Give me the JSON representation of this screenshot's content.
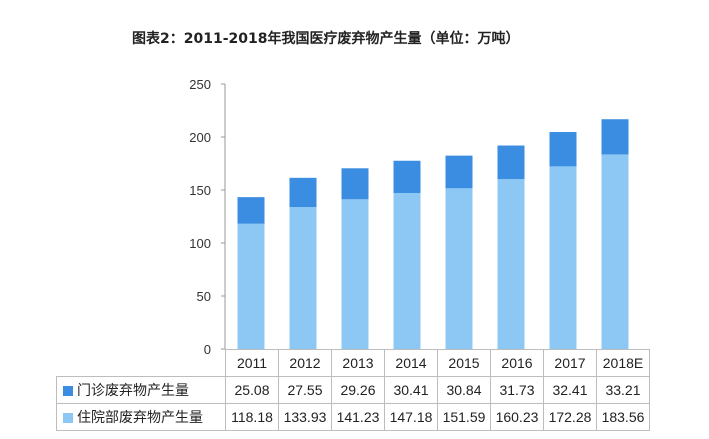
{
  "title": "图表2：2011-2018年我国医疗废弃物产生量（单位：万吨）",
  "colors": {
    "outpatient": "#3a8de0",
    "inpatient": "#8dc8f5",
    "grid": "#d9d9d9",
    "axis": "#999999"
  },
  "chart_data": {
    "type": "bar",
    "stacked": true,
    "categories": [
      "2011",
      "2012",
      "2013",
      "2014",
      "2015",
      "2016",
      "2017",
      "2018E"
    ],
    "series": [
      {
        "name": "住院部废弃物产生量",
        "values": [
          118.18,
          133.93,
          141.23,
          147.18,
          151.59,
          160.23,
          172.28,
          183.56
        ]
      },
      {
        "name": "门诊废弃物产生量",
        "values": [
          25.08,
          27.55,
          29.26,
          30.41,
          30.84,
          31.73,
          32.41,
          33.21
        ]
      }
    ],
    "ylim": [
      0,
      250
    ],
    "yticks": [
      "0",
      "50",
      "100",
      "150",
      "200",
      "250"
    ],
    "grid": false,
    "legend": "data-table"
  },
  "table": {
    "rows": [
      {
        "label": "门诊废弃物产生量",
        "values": [
          "25.08",
          "27.55",
          "29.26",
          "30.41",
          "30.84",
          "31.73",
          "32.41",
          "33.21"
        ]
      },
      {
        "label": "住院部废弃物产生量",
        "values": [
          "118.18",
          "133.93",
          "141.23",
          "147.18",
          "151.59",
          "160.23",
          "172.28",
          "183.56"
        ]
      }
    ]
  }
}
